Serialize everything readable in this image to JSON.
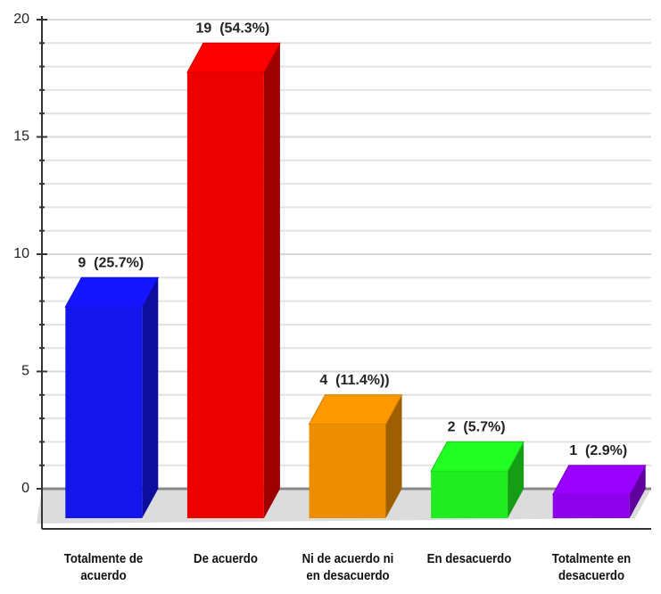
{
  "chart_data": {
    "type": "bar3d",
    "categories": [
      "Totalmente de acuerdo",
      "De acuerdo",
      "Ni de acuerdo ni en desacuerdo",
      "En desacuerdo",
      "Totalmente en desacuerdo"
    ],
    "values": [
      9,
      19,
      4,
      2,
      1
    ],
    "value_labels": [
      "9  (25.7%)",
      "19  (54.3%)",
      "4  (11.4%))",
      "2  (5.7%)",
      "1  (2.9%)"
    ],
    "colors": [
      "#1515ff",
      "#ff0000",
      "#ff9900",
      "#22ff22",
      "#9a00ff"
    ],
    "ylim": [
      0,
      20
    ],
    "yticks": [
      0,
      5,
      10,
      15,
      20
    ],
    "grid": true
  }
}
